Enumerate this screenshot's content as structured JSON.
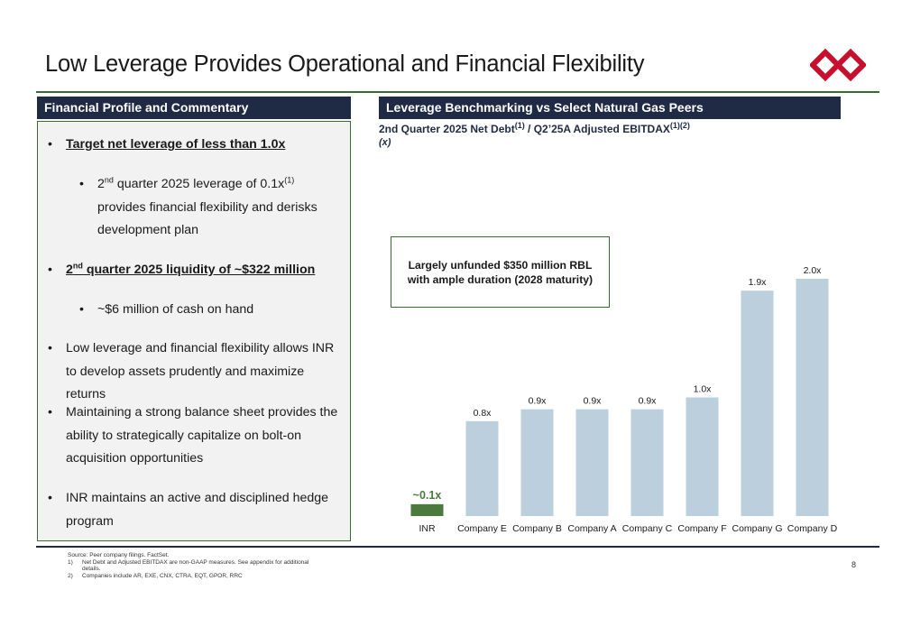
{
  "header": {
    "title": "Low Leverage Provides Operational and Financial Flexibility",
    "logo_icon": "double-diamond-logo-icon",
    "brand_color": "#c8102e"
  },
  "left_panel": {
    "heading": "Financial Profile and Commentary",
    "b1_text": "Target net leverage of less than 1.0x",
    "b2_pre": "2",
    "b2_sup": "nd",
    "b2_mid": " quarter 2025 leverage of 0.1x",
    "b2_sup2": "(1)",
    "b2_post": " provides financial flexibility and derisks development plan",
    "b3_pre": "2",
    "b3_sup": "nd",
    "b3_post": " quarter 2025 liquidity of ~$322 million",
    "b4_text": "~$6 million of cash on hand",
    "b5_text": "Low leverage and financial flexibility allows INR to develop assets prudently and maximize returns",
    "b6_text": "Maintaining a strong balance sheet provides the ability to strategically capitalize on bolt-on acquisition opportunities",
    "b7_text": "INR maintains an active and disciplined hedge program"
  },
  "right_panel": {
    "heading": "Leverage Benchmarking vs Select Natural Gas Peers",
    "subtitle_a": "2nd Quarter 2025 Net Debt",
    "subtitle_sup1": "(1)",
    "subtitle_b": " / Q2’25A Adjusted EBITDAX",
    "subtitle_sup2": "(1)(2)",
    "unit": "(x)",
    "callout": "Largely unfunded $350 million RBL with ample duration (2028 maturity)"
  },
  "chart_data": {
    "type": "bar",
    "categories": [
      "INR",
      "Company E",
      "Company B",
      "Company A",
      "Company C",
      "Company F",
      "Company G",
      "Company D"
    ],
    "values": [
      0.1,
      0.8,
      0.9,
      0.9,
      0.9,
      1.0,
      1.9,
      2.0
    ],
    "data_labels": [
      "~0.1x",
      "0.8x",
      "0.9x",
      "0.9x",
      "0.9x",
      "1.0x",
      "1.9x",
      "2.0x"
    ],
    "colors": [
      "#4a7a3c",
      "#bccfdd",
      "#bccfdd",
      "#bccfdd",
      "#bccfdd",
      "#bccfdd",
      "#bccfdd",
      "#bccfdd"
    ],
    "highlight_label_color": "#4a7a3c",
    "ylim": [
      0,
      2.0
    ],
    "grid": false,
    "legend": "none"
  },
  "footer": {
    "source": "Source: Peer company filings. FactSet.",
    "note1_num": "1)",
    "note1_line1": "Net Debt and Adjusted EBITDAX are non-GAAP measures. See appendix for additional",
    "note1_line2": "details.",
    "note2_num": "2)",
    "note2": "Companies include AR, EXE, CNX, CTRA, EQT, GPOR, RRC",
    "page_number": "8"
  }
}
